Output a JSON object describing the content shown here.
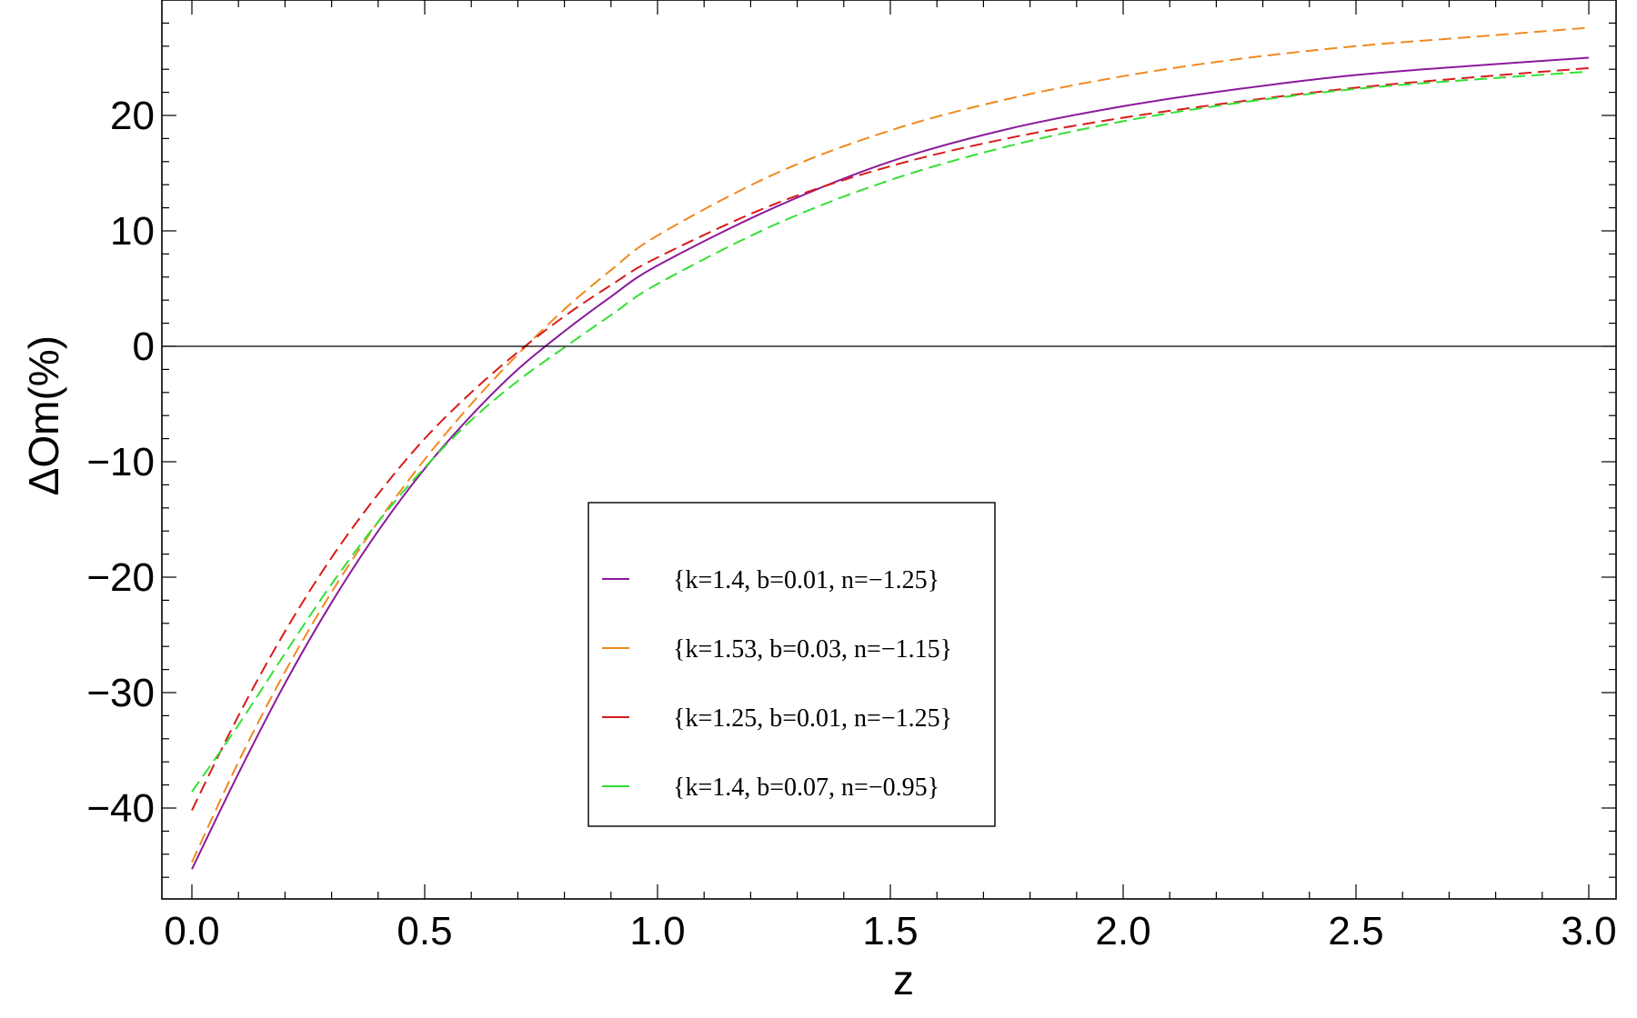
{
  "chart_data": {
    "type": "line",
    "title": "",
    "xlabel": "z",
    "ylabel": "ΔOm(%)",
    "xlim": [
      0,
      3
    ],
    "ylim": [
      -47,
      30
    ],
    "xticks": [
      0.0,
      0.5,
      1.0,
      1.5,
      2.0,
      2.5,
      3.0
    ],
    "xtick_labels": [
      "0.0",
      "0.5",
      "1.0",
      "1.5",
      "2.0",
      "2.5",
      "3.0"
    ],
    "yticks": [
      -40,
      -30,
      -20,
      -10,
      0,
      10,
      20
    ],
    "ytick_labels": [
      "−40",
      "−30",
      "−20",
      "−10",
      "0",
      "10",
      "20"
    ],
    "zero_line": true,
    "grid": false,
    "legend_position": "center",
    "series": [
      {
        "name": "{k=1.4, b=0.01, n=−1.25}",
        "color": "#8b1a9b",
        "dashed": false,
        "x": [
          0,
          0.1,
          0.2,
          0.3,
          0.4,
          0.5,
          0.6,
          0.7,
          0.8,
          0.9,
          1.0,
          1.25,
          1.5,
          1.75,
          2.0,
          2.25,
          2.5,
          2.75,
          3.0
        ],
        "y": [
          -45.3,
          -37.0,
          -29.2,
          -22.2,
          -16.0,
          -10.6,
          -6.0,
          -2.0,
          1.3,
          4.3,
          7.0,
          12.0,
          16.0,
          18.8,
          20.8,
          22.3,
          23.5,
          24.3,
          25.0
        ]
      },
      {
        "name": "{k=1.53, b=0.03, n=−1.15}",
        "color": "#f0891e",
        "dashed": true,
        "x": [
          0,
          0.1,
          0.2,
          0.3,
          0.4,
          0.5,
          0.6,
          0.7,
          0.8,
          0.9,
          1.0,
          1.25,
          1.5,
          1.75,
          2.0,
          2.25,
          2.5,
          2.75,
          3.0
        ],
        "y": [
          -44.7,
          -36.0,
          -28.2,
          -21.3,
          -15.2,
          -9.8,
          -5.0,
          -0.7,
          3.2,
          6.6,
          9.6,
          14.9,
          18.7,
          21.4,
          23.4,
          24.9,
          26.0,
          26.8,
          27.6
        ]
      },
      {
        "name": "{k=1.25, b=0.01, n=−1.25}",
        "color": "#d81b1b",
        "dashed": true,
        "x": [
          0,
          0.1,
          0.2,
          0.3,
          0.4,
          0.5,
          0.6,
          0.7,
          0.8,
          0.9,
          1.0,
          1.25,
          1.5,
          1.75,
          2.0,
          2.25,
          2.5,
          2.75,
          3.0
        ],
        "y": [
          -40.2,
          -32.0,
          -24.7,
          -18.3,
          -12.8,
          -8.0,
          -4.0,
          -0.5,
          2.6,
          5.3,
          7.7,
          12.3,
          15.6,
          18.0,
          19.8,
          21.2,
          22.4,
          23.3,
          24.1
        ]
      },
      {
        "name": "{k=1.4, b=0.07, n=−0.95}",
        "color": "#33e033",
        "dashed": true,
        "x": [
          0,
          0.1,
          0.2,
          0.3,
          0.4,
          0.5,
          0.6,
          0.7,
          0.8,
          0.9,
          1.0,
          1.25,
          1.5,
          1.75,
          2.0,
          2.25,
          2.5,
          2.75,
          3.0
        ],
        "y": [
          -38.6,
          -32.8,
          -26.6,
          -20.6,
          -15.2,
          -10.5,
          -6.4,
          -3.0,
          -0.1,
          2.7,
          5.4,
          10.5,
          14.4,
          17.3,
          19.5,
          21.1,
          22.3,
          23.1,
          23.8
        ]
      }
    ]
  }
}
